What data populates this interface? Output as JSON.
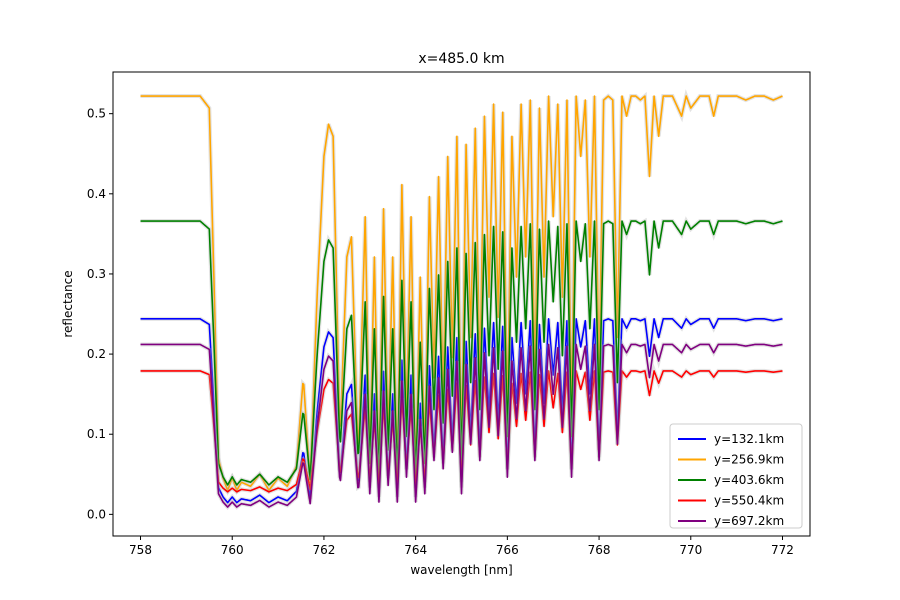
{
  "chart_data": {
    "type": "line",
    "title": "x=485.0 km",
    "xlabel": "wavelength [nm]",
    "ylabel": "reflectance",
    "xlim": [
      757.4,
      772.6
    ],
    "ylim": [
      -0.027,
      0.552
    ],
    "xticks": [
      758,
      760,
      762,
      764,
      766,
      768,
      770,
      772
    ],
    "yticks": [
      0.0,
      0.1,
      0.2,
      0.3,
      0.4,
      0.5
    ],
    "xtick_labels": [
      "758",
      "760",
      "762",
      "764",
      "766",
      "768",
      "770",
      "772"
    ],
    "ytick_labels": [
      "0.0",
      "0.1",
      "0.2",
      "0.3",
      "0.4",
      "0.5"
    ],
    "grid": false,
    "legend_position": "lower-right",
    "x_range": [
      758,
      772
    ],
    "profile": {
      "x": [
        758.0,
        759.3,
        759.5,
        759.6,
        759.7,
        759.8,
        759.9,
        760.0,
        760.1,
        760.2,
        760.4,
        760.6,
        760.8,
        761.0,
        761.2,
        761.4,
        761.55,
        761.7,
        761.85,
        762.0,
        762.1,
        762.2,
        762.35,
        762.5,
        762.6,
        762.75,
        762.9,
        763.0,
        763.1,
        763.2,
        763.3,
        763.4,
        763.5,
        763.6,
        763.7,
        763.8,
        763.9,
        764.0,
        764.1,
        764.2,
        764.3,
        764.4,
        764.5,
        764.6,
        764.7,
        764.8,
        764.9,
        765.0,
        765.1,
        765.2,
        765.3,
        765.4,
        765.5,
        765.6,
        765.7,
        765.8,
        765.9,
        766.0,
        766.1,
        766.2,
        766.3,
        766.4,
        766.5,
        766.6,
        766.7,
        766.8,
        766.9,
        767.0,
        767.1,
        767.2,
        767.3,
        767.4,
        767.5,
        767.6,
        767.7,
        767.8,
        767.9,
        768.0,
        768.1,
        768.2,
        768.3,
        768.4,
        768.5,
        768.6,
        768.7,
        768.8,
        768.9,
        769.0,
        769.1,
        769.2,
        769.3,
        769.4,
        769.6,
        769.8,
        769.9,
        770.0,
        770.2,
        770.4,
        770.5,
        770.6,
        770.8,
        771.0,
        771.2,
        771.4,
        771.6,
        771.8,
        772.0
      ],
      "r": [
        1.0,
        1.0,
        0.97,
        0.55,
        0.1,
        0.05,
        0.02,
        0.05,
        0.02,
        0.04,
        0.03,
        0.06,
        0.02,
        0.05,
        0.03,
        0.08,
        0.3,
        0.04,
        0.5,
        0.85,
        0.93,
        0.9,
        0.15,
        0.6,
        0.65,
        0.1,
        0.7,
        0.1,
        0.6,
        0.05,
        0.72,
        0.15,
        0.6,
        0.05,
        0.78,
        0.2,
        0.7,
        0.05,
        0.55,
        0.1,
        0.75,
        0.3,
        0.8,
        0.25,
        0.85,
        0.35,
        0.9,
        0.1,
        0.88,
        0.4,
        0.92,
        0.3,
        0.95,
        0.5,
        0.98,
        0.45,
        0.96,
        0.2,
        0.9,
        0.55,
        0.98,
        0.6,
        0.99,
        0.3,
        0.97,
        0.55,
        1.0,
        0.7,
        0.98,
        0.5,
        0.99,
        0.2,
        1.0,
        0.85,
        0.99,
        0.6,
        1.0,
        0.3,
        0.99,
        1.0,
        0.99,
        0.4,
        1.0,
        0.95,
        1.0,
        1.0,
        0.99,
        1.0,
        0.8,
        1.0,
        0.9,
        1.0,
        1.0,
        0.95,
        1.0,
        0.97,
        1.0,
        1.0,
        0.95,
        1.0,
        1.0,
        1.0,
        0.99,
        1.0,
        1.0,
        0.99,
        1.0
      ]
    },
    "series": [
      {
        "name": "y=132.1km",
        "color": "#0000ff",
        "level": 0.244,
        "floor": 0.01
      },
      {
        "name": "y=256.9km",
        "color": "#ffa500",
        "level": 0.522,
        "floor": 0.02
      },
      {
        "name": "y=403.6km",
        "color": "#008000",
        "level": 0.366,
        "floor": 0.03
      },
      {
        "name": "y=550.4km",
        "color": "#ff0000",
        "level": 0.179,
        "floor": 0.025
      },
      {
        "name": "y=697.2km",
        "color": "#800080",
        "level": 0.212,
        "floor": 0.005
      }
    ]
  }
}
